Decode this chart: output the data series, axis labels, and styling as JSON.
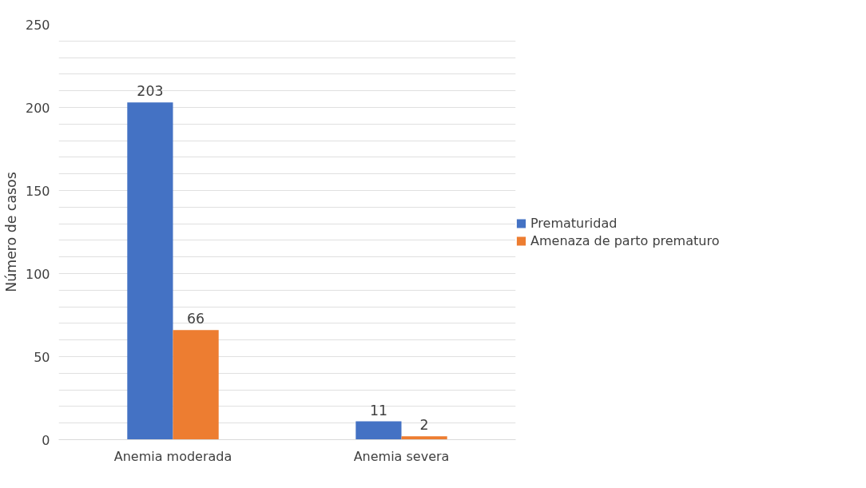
{
  "chart_data": {
    "type": "bar",
    "ylabel": "Número de casos",
    "categories": [
      "Anemia moderada",
      "Anemia severa"
    ],
    "series": [
      {
        "name": "Prematuridad",
        "color": "#4472c4",
        "values": [
          203,
          11
        ]
      },
      {
        "name": "Amenaza de parto prematuro",
        "color": "#ed7d31",
        "values": [
          66,
          2
        ]
      }
    ],
    "ylim": [
      0,
      250
    ],
    "yticks": [
      0,
      {
        "value": 10,
        "label": null
      },
      {
        "value": 20,
        "label": null
      },
      {
        "value": 30,
        "label": null
      },
      {
        "value": 40,
        "label": null
      },
      50,
      {
        "value": 60,
        "label": null
      },
      {
        "value": 70,
        "label": null
      },
      {
        "value": 80,
        "label": null
      },
      {
        "value": 90,
        "label": null
      },
      100,
      {
        "value": 110,
        "label": null
      },
      {
        "value": 120,
        "label": null
      },
      {
        "value": 130,
        "label": null
      },
      {
        "value": 140,
        "label": null
      },
      150,
      {
        "value": 160,
        "label": null
      },
      {
        "value": 170,
        "label": null
      },
      {
        "value": 180,
        "label": null
      },
      {
        "value": 190,
        "label": null
      },
      200,
      {
        "value": 210,
        "label": null
      },
      {
        "value": 220,
        "label": null
      },
      {
        "value": 230,
        "label": null
      },
      {
        "value": 240,
        "label": null
      },
      250
    ],
    "grid": "y",
    "legend": "right",
    "data_labels": true
  }
}
